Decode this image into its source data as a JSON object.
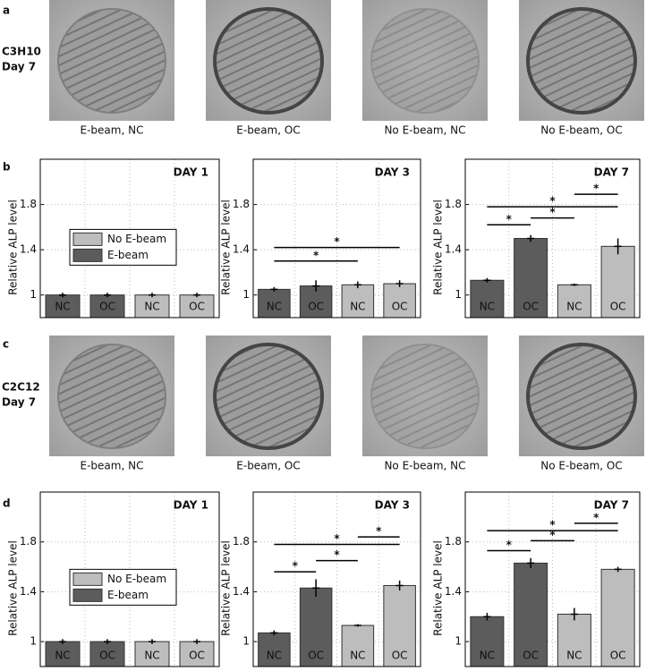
{
  "panel_labels": [
    "a",
    "b",
    "c",
    "d"
  ],
  "photo_rows": [
    {
      "row_label": [
        "C3H10",
        "Day 7"
      ],
      "captions": [
        "E-beam, NC",
        "E-beam, OC",
        "No E-beam, NC",
        "No E-beam, OC"
      ]
    },
    {
      "row_label": [
        "C2C12",
        "Day 7"
      ],
      "captions": [
        "E-beam, NC",
        "E-beam, OC",
        "No E-beam, NC",
        "No E-beam, OC"
      ]
    }
  ],
  "chart_data": [
    {
      "type": "bar",
      "title": "DAY 1",
      "ylabel": "Relative ALP level",
      "categories": [
        "NC",
        "OC",
        "NC",
        "OC"
      ],
      "series": [
        {
          "name": "No E-beam",
          "color": "#bdbdbd",
          "values": [
            null,
            null,
            1,
            1
          ],
          "errors": [
            null,
            null,
            0.02,
            0.02
          ]
        },
        {
          "name": "E-beam",
          "color": "#5c5c5c",
          "values": [
            1,
            1,
            null,
            null
          ],
          "errors": [
            0.02,
            0.02,
            null,
            null
          ]
        }
      ],
      "ylim": [
        0.8,
        2.2
      ],
      "yticks": [
        1,
        1.4,
        1.8
      ],
      "grid": true,
      "legend": "center left",
      "annotations": []
    },
    {
      "type": "bar",
      "title": "DAY 3",
      "ylabel": "Relative ALP level",
      "categories": [
        "NC",
        "OC",
        "NC",
        "OC"
      ],
      "series": [
        {
          "name": "No E-beam",
          "color": "#bdbdbd",
          "values": [
            null,
            null,
            1.09,
            1.1
          ],
          "errors": [
            null,
            null,
            0.03,
            0.03
          ]
        },
        {
          "name": "E-beam",
          "color": "#5c5c5c",
          "values": [
            1.05,
            1.08,
            null,
            null
          ],
          "errors": [
            0.02,
            0.05,
            null,
            null
          ]
        }
      ],
      "ylim": [
        0.8,
        2.2
      ],
      "yticks": [
        1,
        1.4,
        1.8
      ],
      "grid": true,
      "annotations": [
        "*",
        "*"
      ]
    },
    {
      "type": "bar",
      "title": "DAY 7",
      "ylabel": "Relative ALP level",
      "categories": [
        "NC",
        "OC",
        "NC",
        "OC"
      ],
      "series": [
        {
          "name": "No E-beam",
          "color": "#bdbdbd",
          "values": [
            null,
            null,
            1.09,
            1.43
          ],
          "errors": [
            null,
            null,
            0.01,
            0.07
          ]
        },
        {
          "name": "E-beam",
          "color": "#5c5c5c",
          "values": [
            1.13,
            1.5,
            null,
            null
          ],
          "errors": [
            0.02,
            0.03,
            null,
            null
          ]
        }
      ],
      "ylim": [
        0.8,
        2.2
      ],
      "yticks": [
        1,
        1.4,
        1.8
      ],
      "grid": true,
      "annotations": [
        "*",
        "*",
        "*",
        "*"
      ]
    },
    {
      "type": "bar",
      "title": "DAY 1",
      "ylabel": "Relative ALP level",
      "categories": [
        "NC",
        "OC",
        "NC",
        "OC"
      ],
      "series": [
        {
          "name": "No E-beam",
          "color": "#bdbdbd",
          "values": [
            null,
            null,
            1,
            1
          ],
          "errors": [
            null,
            null,
            0.02,
            0.02
          ]
        },
        {
          "name": "E-beam",
          "color": "#5c5c5c",
          "values": [
            1,
            1,
            null,
            null
          ],
          "errors": [
            0.02,
            0.02,
            null,
            null
          ]
        }
      ],
      "ylim": [
        0.8,
        2.2
      ],
      "yticks": [
        1,
        1.4,
        1.8
      ],
      "grid": true,
      "legend": "center left",
      "annotations": []
    },
    {
      "type": "bar",
      "title": "DAY 3",
      "ylabel": "Relative ALP level",
      "categories": [
        "NC",
        "OC",
        "NC",
        "OC"
      ],
      "series": [
        {
          "name": "No E-beam",
          "color": "#bdbdbd",
          "values": [
            null,
            null,
            1.13,
            1.45
          ],
          "errors": [
            null,
            null,
            0.01,
            0.04
          ]
        },
        {
          "name": "E-beam",
          "color": "#5c5c5c",
          "values": [
            1.07,
            1.43,
            null,
            null
          ],
          "errors": [
            0.02,
            0.07,
            null,
            null
          ]
        }
      ],
      "ylim": [
        0.8,
        2.2
      ],
      "yticks": [
        1,
        1.4,
        1.8
      ],
      "grid": true,
      "annotations": [
        "*",
        "*",
        "*",
        "*"
      ]
    },
    {
      "type": "bar",
      "title": "DAY 7",
      "ylabel": "Relative ALP level",
      "categories": [
        "NC",
        "OC",
        "NC",
        "OC"
      ],
      "series": [
        {
          "name": "No E-beam",
          "color": "#bdbdbd",
          "values": [
            null,
            null,
            1.22,
            1.58
          ],
          "errors": [
            null,
            null,
            0.05,
            0.02
          ]
        },
        {
          "name": "E-beam",
          "color": "#5c5c5c",
          "values": [
            1.2,
            1.63,
            null,
            null
          ],
          "errors": [
            0.03,
            0.04,
            null,
            null
          ]
        }
      ],
      "ylim": [
        0.8,
        2.2
      ],
      "yticks": [
        1,
        1.4,
        1.8
      ],
      "grid": true,
      "annotations": [
        "*",
        "*",
        "*",
        "*"
      ]
    }
  ]
}
